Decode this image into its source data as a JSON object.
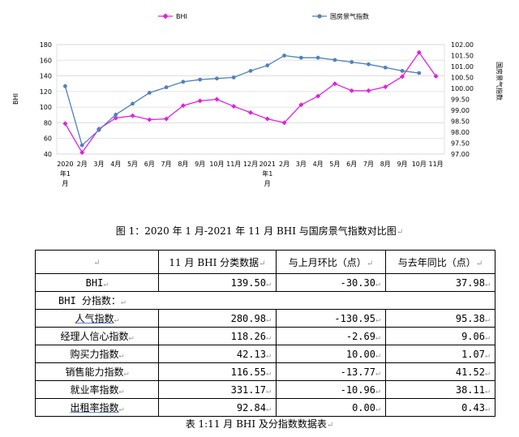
{
  "chart_data": {
    "type": "line",
    "legend": [
      "BHI",
      "国房景气指数"
    ],
    "legend_position": "top",
    "y_left_label": "BHI",
    "y_right_label": "国房景气指数",
    "y_left_ticks": [
      "40",
      "60",
      "80",
      "100",
      "120",
      "140",
      "160",
      "180"
    ],
    "y_left_range": [
      40,
      180
    ],
    "y_right_ticks": [
      "97.00",
      "97.50",
      "98.00",
      "98.50",
      "99.00",
      "99.50",
      "100.00",
      "100.50",
      "101.00",
      "101.50",
      "102.00"
    ],
    "y_right_range": [
      97.0,
      102.0
    ],
    "x_labels": [
      [
        "2020",
        "年1",
        "月"
      ],
      [
        "2月"
      ],
      [
        "3月"
      ],
      [
        "4月"
      ],
      [
        "5月"
      ],
      [
        "6月"
      ],
      [
        "7月"
      ],
      [
        "8月"
      ],
      [
        "9月"
      ],
      [
        "10月"
      ],
      [
        "11月"
      ],
      [
        "12月"
      ],
      [
        "2021",
        "年1",
        "月"
      ],
      [
        "2月"
      ],
      [
        "3月"
      ],
      [
        "4月"
      ],
      [
        "5月"
      ],
      [
        "6月"
      ],
      [
        "7月"
      ],
      [
        "8月"
      ],
      [
        "9月"
      ],
      [
        "10月"
      ],
      [
        "11月"
      ]
    ],
    "series": [
      {
        "name": "BHI",
        "axis": "left",
        "color": "#e020e0",
        "marker": "diamond",
        "values": [
          79,
          42,
          72,
          86,
          89,
          84,
          85,
          102,
          108,
          110,
          101,
          93,
          85,
          80,
          103,
          114,
          130,
          121,
          121,
          126,
          139,
          170,
          139.5
        ]
      },
      {
        "name": "国房景气指数",
        "axis": "right",
        "color": "#4f81bd",
        "marker": "circle",
        "values": [
          100.1,
          97.4,
          98.1,
          98.8,
          99.3,
          99.8,
          100.05,
          100.3,
          100.4,
          100.45,
          100.5,
          100.8,
          101.05,
          101.5,
          101.4,
          101.4,
          101.3,
          101.2,
          101.1,
          100.95,
          100.8,
          100.7,
          null
        ]
      }
    ]
  },
  "figure_caption": "图 1：2020 年 1 月-2021 年 11 月 BHI 与国房景气指数对比图",
  "table": {
    "headers": [
      "11 月 BHI 分类数据",
      "与上月环比（点）",
      "与去年同比（点）"
    ],
    "bhi_row": {
      "label": "BHI",
      "value": "139.50",
      "mom": "-30.30",
      "yoy": "37.98"
    },
    "section_label": "BHI 分指数：",
    "rows": [
      {
        "label": "人气指数",
        "value": "280.98",
        "mom": "-130.95",
        "yoy": "95.38"
      },
      {
        "label": "经理人信心指数",
        "value": "118.26",
        "mom": "-2.69",
        "yoy": "9.06"
      },
      {
        "label": "购买力指数",
        "value": "42.13",
        "mom": "10.00",
        "yoy": "1.07"
      },
      {
        "label": "销售能力指数",
        "value": "116.55",
        "mom": "-13.77",
        "yoy": "41.52"
      },
      {
        "label": "就业率指数",
        "value": "331.17",
        "mom": "-10.96",
        "yoy": "38.11"
      },
      {
        "label": "出租率指数",
        "value": "92.84",
        "mom": "0.00",
        "yoy": "0.43"
      }
    ]
  },
  "table_caption": "表 1:11 月 BHI 及分指数数据表",
  "return_mark": "↵"
}
